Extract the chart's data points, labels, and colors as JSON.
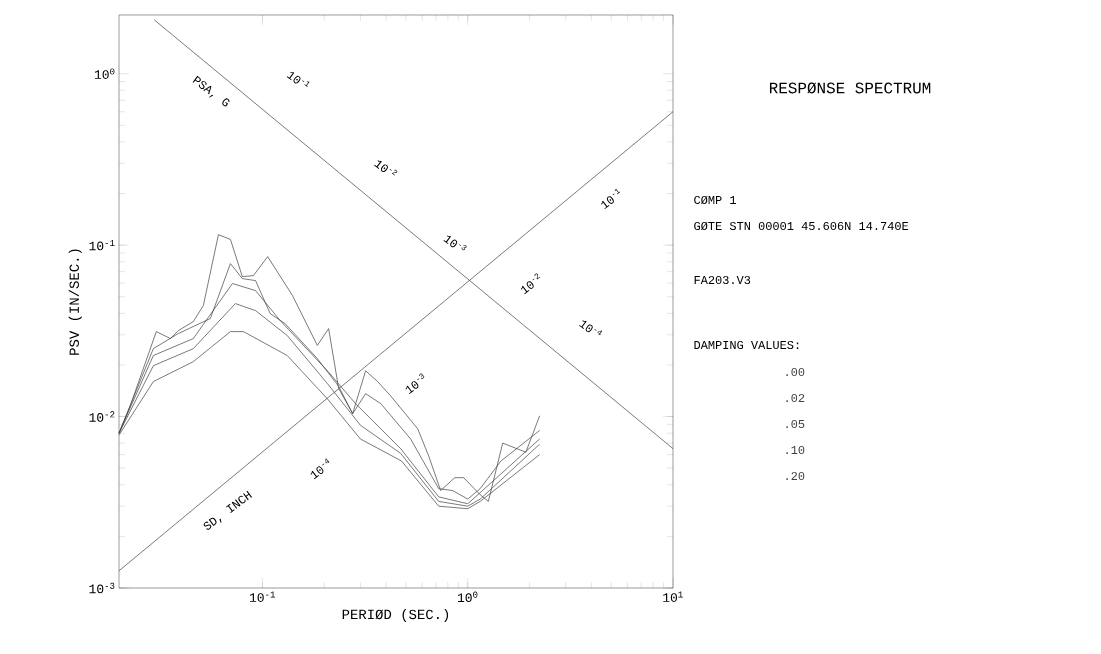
{
  "chart_data": {
    "type": "line",
    "title": "RESPØNSE SPECTRUM",
    "xlabel": "PERIØD (SEC.)",
    "ylabel": "PSV (IN/SEC.)",
    "log": "xy",
    "xlim": [
      0.02,
      10
    ],
    "ylim": [
      0.001,
      2.2
    ],
    "xticks": [
      {
        "value": 0.1,
        "label": "10$^{-1}$"
      },
      {
        "value": 1,
        "label": "10$^{0}$"
      },
      {
        "value": 10,
        "label": "10$^{1}$"
      }
    ],
    "yticks": [
      {
        "value": 0.001,
        "label": "10$^{-3}$"
      },
      {
        "value": 0.01,
        "label": "10$^{-2}$"
      },
      {
        "value": 0.1,
        "label": "10$^{-1}$"
      },
      {
        "value": 1,
        "label": "10$^{0}$"
      }
    ],
    "legend_title": "DAMPING VALUES:",
    "series": [
      {
        "name": ".00",
        "color": "#404040",
        "x": [
          0.02,
          0.0227,
          0.0304,
          0.0356,
          0.0389,
          0.046,
          0.0515,
          0.061,
          0.0698,
          0.0798,
          0.0903,
          0.106,
          0.14,
          0.185,
          0.21,
          0.235,
          0.275,
          0.318,
          0.364,
          0.421,
          0.57,
          0.645,
          0.738,
          0.865,
          0.955,
          1.15,
          1.26,
          1.48,
          1.92,
          2.24
        ],
        "values": [
          0.008,
          0.0116,
          0.0313,
          0.0285,
          0.0317,
          0.0358,
          0.0444,
          0.115,
          0.108,
          0.0655,
          0.0664,
          0.0857,
          0.0508,
          0.026,
          0.0326,
          0.0146,
          0.0104,
          0.0185,
          0.016,
          0.0132,
          0.0085,
          0.0059,
          0.0037,
          0.0044,
          0.0044,
          0.0035,
          0.0032,
          0.007,
          0.0062,
          0.0101
        ]
      },
      {
        "name": ".02",
        "color": "#404040",
        "x": [
          0.02,
          0.0294,
          0.0389,
          0.0557,
          0.0698,
          0.0798,
          0.0925,
          0.109,
          0.129,
          0.185,
          0.235,
          0.275,
          0.318,
          0.377,
          0.527,
          0.722,
          0.845,
          1.0,
          1.15,
          1.45,
          2.24
        ],
        "values": [
          0.008,
          0.0249,
          0.0305,
          0.0373,
          0.078,
          0.0638,
          0.0621,
          0.0399,
          0.0348,
          0.0218,
          0.015,
          0.0104,
          0.0136,
          0.0119,
          0.0074,
          0.0038,
          0.0037,
          0.0033,
          0.0038,
          0.0055,
          0.0083
        ]
      },
      {
        "name": ".05",
        "color": "#404040",
        "x": [
          0.02,
          0.0294,
          0.046,
          0.0714,
          0.0925,
          0.122,
          0.207,
          0.284,
          0.471,
          0.722,
          1.0,
          1.15,
          2.24
        ],
        "values": [
          0.008,
          0.0227,
          0.0285,
          0.0597,
          0.0543,
          0.0363,
          0.0185,
          0.0119,
          0.0065,
          0.0034,
          0.0031,
          0.0036,
          0.0074
        ]
      },
      {
        "name": ".10",
        "color": "#404040",
        "x": [
          0.02,
          0.0294,
          0.046,
          0.0738,
          0.0925,
          0.132,
          0.207,
          0.3,
          0.471,
          0.722,
          1.0,
          1.15,
          2.24
        ],
        "values": [
          0.008,
          0.0198,
          0.0249,
          0.0456,
          0.0415,
          0.0297,
          0.0156,
          0.0089,
          0.0061,
          0.0032,
          0.003,
          0.0033,
          0.0069
        ]
      },
      {
        "name": ".20",
        "color": "#404040",
        "x": [
          0.02,
          0.0294,
          0.046,
          0.0698,
          0.0808,
          0.132,
          0.207,
          0.3,
          0.476,
          0.722,
          1.0,
          1.15,
          2.24
        ],
        "values": [
          0.0078,
          0.016,
          0.0209,
          0.0313,
          0.0313,
          0.0227,
          0.0127,
          0.0074,
          0.0055,
          0.003,
          0.0029,
          0.0032,
          0.006
        ]
      },
      {
        "color": "#404040",
        "x": [
          0.0297,
          10
        ],
        "values": [
          2.06,
          0.0065
        ]
      },
      {
        "color": "#404040",
        "x": [
          0.02,
          10
        ],
        "values": [
          0.00126,
          0.6
        ]
      }
    ],
    "annotations": [
      "CØMP 1",
      "GØTE  STN 00001  45.606N   14.740E",
      "FA203.V3",
      "PSA, G",
      "10$^{-1}$",
      "10$^{-2}$",
      "10$^{-3}$",
      "10$^{-4}$",
      "SD, INCH",
      "10$^{-4}$",
      "10$^{-3}$",
      "10$^{-2}$",
      "10$^{-1}$"
    ]
  }
}
